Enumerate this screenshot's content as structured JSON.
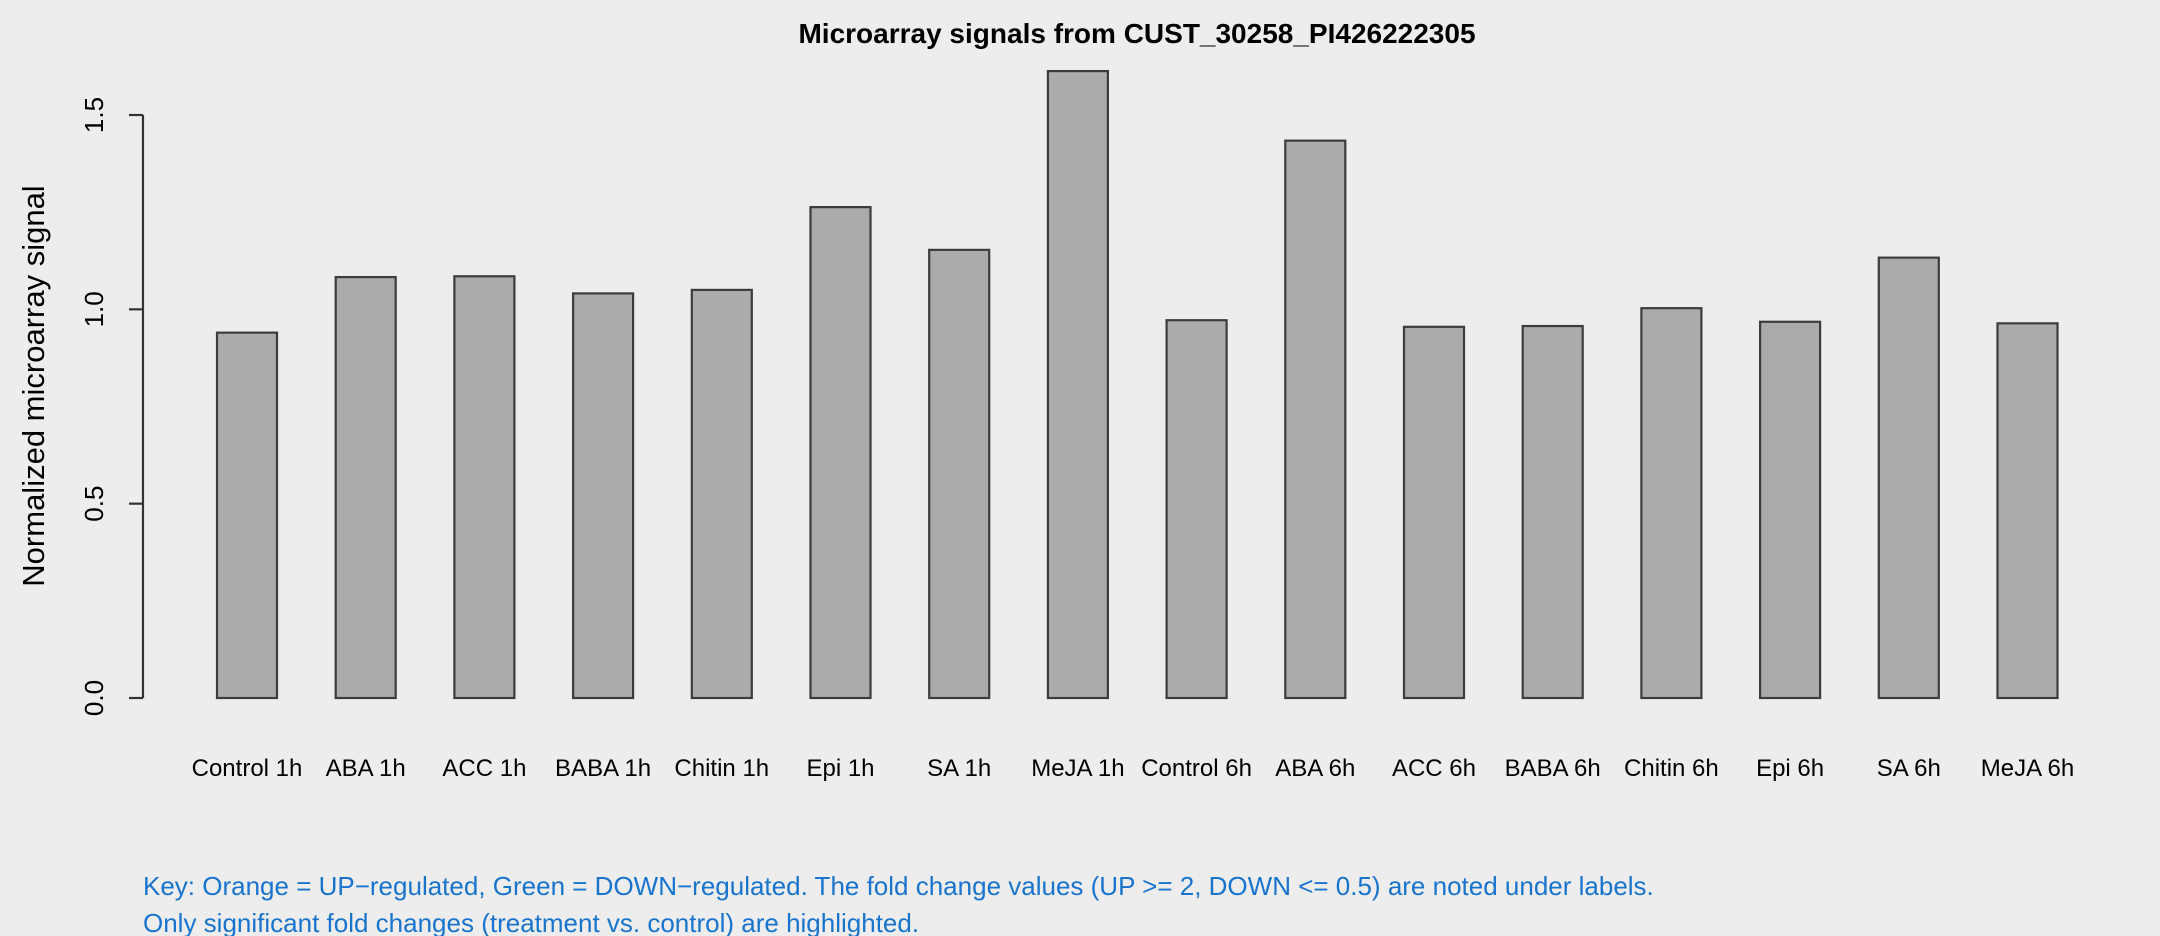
{
  "chart_data": {
    "type": "bar",
    "title": "Microarray signals from CUST_30258_PI426222305",
    "xlabel": "",
    "ylabel": "Normalized microarray signal",
    "categories": [
      "Control 1h",
      "ABA 1h",
      "ACC 1h",
      "BABA 1h",
      "Chitin 1h",
      "Epi 1h",
      "SA 1h",
      "MeJA 1h",
      "Control 6h",
      "ABA 6h",
      "ACC 6h",
      "BABA 6h",
      "Chitin 6h",
      "Epi 6h",
      "SA 6h",
      "MeJA 6h"
    ],
    "values": [
      0.94,
      1.083,
      1.085,
      1.041,
      1.05,
      1.263,
      1.153,
      1.613,
      0.972,
      1.434,
      0.955,
      0.957,
      1.003,
      0.968,
      1.133,
      0.964
    ],
    "ylim": [
      0,
      1.65
    ],
    "yticks": [
      0.0,
      0.5,
      1.0,
      1.5
    ],
    "ytick_labels": [
      "0.0",
      "0.5",
      "1.0",
      "1.5"
    ],
    "grid": false,
    "legend_position": "none",
    "bar_fill": "#ABABAB",
    "bar_border": "#3C3C3C",
    "axis_color": "#333333",
    "background": "#EDEDED"
  },
  "footer": {
    "key_line1": "Key: Orange = UP−regulated, Green = DOWN−regulated. The fold change values (UP >= 2, DOWN <= 0.5) are noted under labels.",
    "key_line2": "Only significant fold changes (treatment vs. control) are highlighted.",
    "key_color": "#1874CD"
  }
}
